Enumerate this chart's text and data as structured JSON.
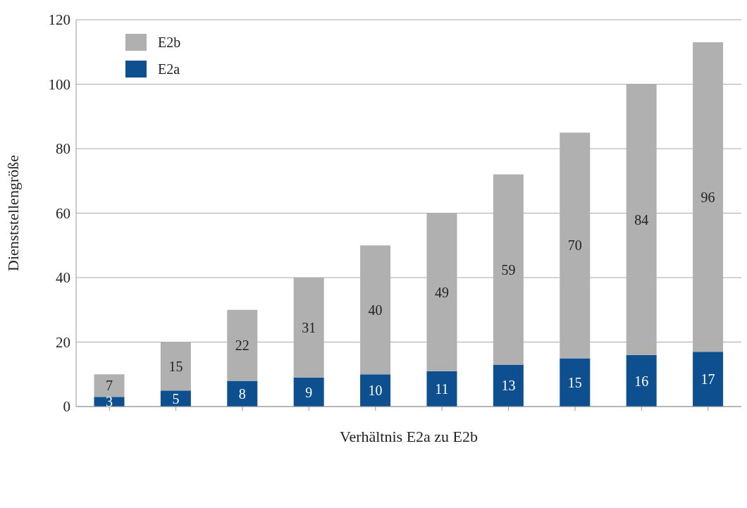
{
  "chart_data": {
    "type": "bar",
    "xlabel": "Verhältnis E2a zu E2b",
    "ylabel": "Dienststellengröße",
    "categories": [
      null,
      null,
      null,
      null,
      null,
      null,
      null,
      null,
      null,
      null
    ],
    "stacked": true,
    "series": [
      {
        "name": "E2a",
        "color": "#0d4f8f",
        "values": [
          3,
          5,
          8,
          9,
          10,
          11,
          13,
          15,
          16,
          17
        ]
      },
      {
        "name": "E2b",
        "color": "#b0b0b0",
        "values": [
          7,
          15,
          22,
          31,
          40,
          49,
          59,
          70,
          84,
          96
        ]
      }
    ],
    "ylim": [
      0,
      120
    ],
    "yticks": [
      0,
      20,
      40,
      60,
      80,
      100,
      120
    ],
    "grid": "y",
    "legend": "top left",
    "data_labels": true
  }
}
